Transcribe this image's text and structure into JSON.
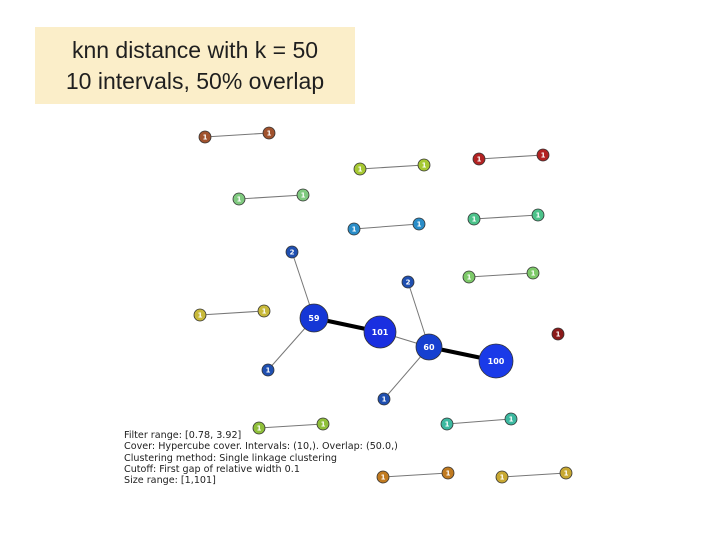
{
  "title": {
    "line1": "knn distance with k = 50",
    "line2": "10 intervals, 50% overlap"
  },
  "graph": {
    "nodes": [
      {
        "id": "a1",
        "label": "1",
        "color": "#a0522d"
      },
      {
        "id": "a2",
        "label": "1",
        "color": "#a0522d"
      },
      {
        "id": "b1",
        "label": "1",
        "color": "#a6c832"
      },
      {
        "id": "b2",
        "label": "1",
        "color": "#a6c832"
      },
      {
        "id": "c1",
        "label": "1",
        "color": "#b22222"
      },
      {
        "id": "c2",
        "label": "1",
        "color": "#b22222"
      },
      {
        "id": "d1",
        "label": "1",
        "color": "#7fc97f"
      },
      {
        "id": "d2",
        "label": "1",
        "color": "#7fc97f"
      },
      {
        "id": "e1",
        "label": "1",
        "color": "#2a8dc8"
      },
      {
        "id": "e2",
        "label": "1",
        "color": "#2a8dc8"
      },
      {
        "id": "f1",
        "label": "1",
        "color": "#4cc28a"
      },
      {
        "id": "f2",
        "label": "1",
        "color": "#4cc28a"
      },
      {
        "id": "g1",
        "label": "1",
        "color": "#7dc969"
      },
      {
        "id": "g2",
        "label": "1",
        "color": "#7dc969"
      },
      {
        "id": "h1",
        "label": "1",
        "color": "#c8b93a"
      },
      {
        "id": "h2",
        "label": "1",
        "color": "#c8b93a"
      },
      {
        "id": "n2a",
        "label": "2",
        "color": "#1f4fb0"
      },
      {
        "id": "n59",
        "label": "59",
        "color": "#1537d6"
      },
      {
        "id": "n101",
        "label": "101",
        "color": "#1a2fe0"
      },
      {
        "id": "n60",
        "label": "60",
        "color": "#1640d0"
      },
      {
        "id": "n100",
        "label": "100",
        "color": "#1a3ae8"
      },
      {
        "id": "n1a",
        "label": "1",
        "color": "#1f4fb0"
      },
      {
        "id": "n2b",
        "label": "2",
        "color": "#1f4fb0"
      },
      {
        "id": "n1b",
        "label": "1",
        "color": "#1f4fb0"
      },
      {
        "id": "m1",
        "label": "1",
        "color": "#8b1a1a"
      },
      {
        "id": "i1",
        "label": "1",
        "color": "#8fbf3a"
      },
      {
        "id": "i2",
        "label": "1",
        "color": "#8fbf3a"
      },
      {
        "id": "j1",
        "label": "1",
        "color": "#3cb8a0"
      },
      {
        "id": "j2",
        "label": "1",
        "color": "#3cb8a0"
      },
      {
        "id": "k1",
        "label": "1",
        "color": "#c07a20"
      },
      {
        "id": "k2",
        "label": "1",
        "color": "#c07a20"
      },
      {
        "id": "l1",
        "label": "1",
        "color": "#c8a832"
      },
      {
        "id": "l2",
        "label": "1",
        "color": "#c8a832"
      }
    ],
    "edges": [
      {
        "from": "a1",
        "to": "a2",
        "weight": "thin"
      },
      {
        "from": "b1",
        "to": "b2",
        "weight": "thin"
      },
      {
        "from": "c1",
        "to": "c2",
        "weight": "thin"
      },
      {
        "from": "d1",
        "to": "d2",
        "weight": "thin"
      },
      {
        "from": "e1",
        "to": "e2",
        "weight": "thin"
      },
      {
        "from": "f1",
        "to": "f2",
        "weight": "thin"
      },
      {
        "from": "g1",
        "to": "g2",
        "weight": "thin"
      },
      {
        "from": "h1",
        "to": "h2",
        "weight": "thin"
      },
      {
        "from": "n2a",
        "to": "n59",
        "weight": "thin"
      },
      {
        "from": "n59",
        "to": "n1a",
        "weight": "thin"
      },
      {
        "from": "n59",
        "to": "n101",
        "weight": "thick"
      },
      {
        "from": "n101",
        "to": "n60",
        "weight": "thin"
      },
      {
        "from": "n2b",
        "to": "n60",
        "weight": "thin"
      },
      {
        "from": "n60",
        "to": "n1b",
        "weight": "thin"
      },
      {
        "from": "n60",
        "to": "n100",
        "weight": "thick"
      },
      {
        "from": "i1",
        "to": "i2",
        "weight": "thin"
      },
      {
        "from": "j1",
        "to": "j2",
        "weight": "thin"
      },
      {
        "from": "k1",
        "to": "k2",
        "weight": "thin"
      },
      {
        "from": "l1",
        "to": "l2",
        "weight": "thin"
      }
    ]
  },
  "info": {
    "filter_range": "Filter range: [0.78, 3.92]",
    "cover": "Cover: Hypercube cover. Intervals: (10,). Overlap: (50.0,)",
    "clustering": "Clustering method: Single linkage clustering",
    "cutoff": "Cutoff: First gap of relative width 0.1",
    "size_range": "Size range: [1,101]"
  }
}
